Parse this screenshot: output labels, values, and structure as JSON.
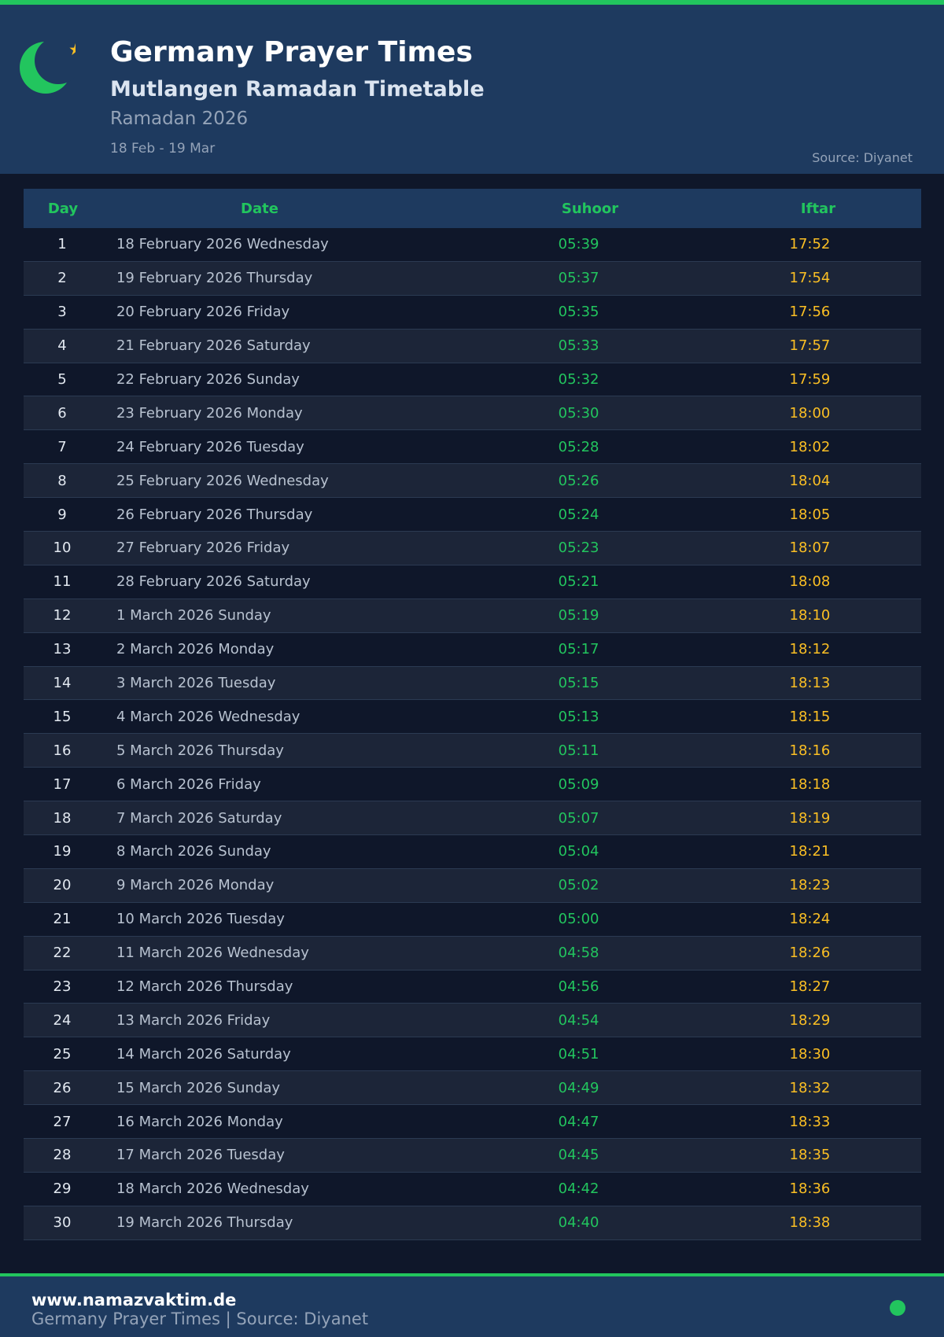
{
  "header": {
    "title": "Germany Prayer Times",
    "subtitle": "Mutlangen Ramadan Timetable",
    "year": "Ramadan 2026",
    "range": "18 Feb - 19 Mar",
    "source": "Source: Diyanet",
    "icon": "crescent-star-icon"
  },
  "colors": {
    "accent": "#22c55e",
    "iftar": "#fbbf24",
    "header_bg": "#1e3a5f",
    "page_bg": "#0f172a"
  },
  "table": {
    "headers": {
      "day": "Day",
      "date": "Date",
      "suhoor": "Suhoor",
      "iftar": "Iftar"
    },
    "rows": [
      {
        "day": "1",
        "date": "18 February 2026 Wednesday",
        "suhoor": "05:39",
        "iftar": "17:52"
      },
      {
        "day": "2",
        "date": "19 February 2026 Thursday",
        "suhoor": "05:37",
        "iftar": "17:54"
      },
      {
        "day": "3",
        "date": "20 February 2026 Friday",
        "suhoor": "05:35",
        "iftar": "17:56"
      },
      {
        "day": "4",
        "date": "21 February 2026 Saturday",
        "suhoor": "05:33",
        "iftar": "17:57"
      },
      {
        "day": "5",
        "date": "22 February 2026 Sunday",
        "suhoor": "05:32",
        "iftar": "17:59"
      },
      {
        "day": "6",
        "date": "23 February 2026 Monday",
        "suhoor": "05:30",
        "iftar": "18:00"
      },
      {
        "day": "7",
        "date": "24 February 2026 Tuesday",
        "suhoor": "05:28",
        "iftar": "18:02"
      },
      {
        "day": "8",
        "date": "25 February 2026 Wednesday",
        "suhoor": "05:26",
        "iftar": "18:04"
      },
      {
        "day": "9",
        "date": "26 February 2026 Thursday",
        "suhoor": "05:24",
        "iftar": "18:05"
      },
      {
        "day": "10",
        "date": "27 February 2026 Friday",
        "suhoor": "05:23",
        "iftar": "18:07"
      },
      {
        "day": "11",
        "date": "28 February 2026 Saturday",
        "suhoor": "05:21",
        "iftar": "18:08"
      },
      {
        "day": "12",
        "date": "1 March 2026 Sunday",
        "suhoor": "05:19",
        "iftar": "18:10"
      },
      {
        "day": "13",
        "date": "2 March 2026 Monday",
        "suhoor": "05:17",
        "iftar": "18:12"
      },
      {
        "day": "14",
        "date": "3 March 2026 Tuesday",
        "suhoor": "05:15",
        "iftar": "18:13"
      },
      {
        "day": "15",
        "date": "4 March 2026 Wednesday",
        "suhoor": "05:13",
        "iftar": "18:15"
      },
      {
        "day": "16",
        "date": "5 March 2026 Thursday",
        "suhoor": "05:11",
        "iftar": "18:16"
      },
      {
        "day": "17",
        "date": "6 March 2026 Friday",
        "suhoor": "05:09",
        "iftar": "18:18"
      },
      {
        "day": "18",
        "date": "7 March 2026 Saturday",
        "suhoor": "05:07",
        "iftar": "18:19"
      },
      {
        "day": "19",
        "date": "8 March 2026 Sunday",
        "suhoor": "05:04",
        "iftar": "18:21"
      },
      {
        "day": "20",
        "date": "9 March 2026 Monday",
        "suhoor": "05:02",
        "iftar": "18:23"
      },
      {
        "day": "21",
        "date": "10 March 2026 Tuesday",
        "suhoor": "05:00",
        "iftar": "18:24"
      },
      {
        "day": "22",
        "date": "11 March 2026 Wednesday",
        "suhoor": "04:58",
        "iftar": "18:26"
      },
      {
        "day": "23",
        "date": "12 March 2026 Thursday",
        "suhoor": "04:56",
        "iftar": "18:27"
      },
      {
        "day": "24",
        "date": "13 March 2026 Friday",
        "suhoor": "04:54",
        "iftar": "18:29"
      },
      {
        "day": "25",
        "date": "14 March 2026 Saturday",
        "suhoor": "04:51",
        "iftar": "18:30"
      },
      {
        "day": "26",
        "date": "15 March 2026 Sunday",
        "suhoor": "04:49",
        "iftar": "18:32"
      },
      {
        "day": "27",
        "date": "16 March 2026 Monday",
        "suhoor": "04:47",
        "iftar": "18:33"
      },
      {
        "day": "28",
        "date": "17 March 2026 Tuesday",
        "suhoor": "04:45",
        "iftar": "18:35"
      },
      {
        "day": "29",
        "date": "18 March 2026 Wednesday",
        "suhoor": "04:42",
        "iftar": "18:36"
      },
      {
        "day": "30",
        "date": "19 March 2026 Thursday",
        "suhoor": "04:40",
        "iftar": "18:38"
      }
    ]
  },
  "footer": {
    "url": "www.namazvaktim.de",
    "text": "Germany Prayer Times | Source: Diyanet"
  }
}
